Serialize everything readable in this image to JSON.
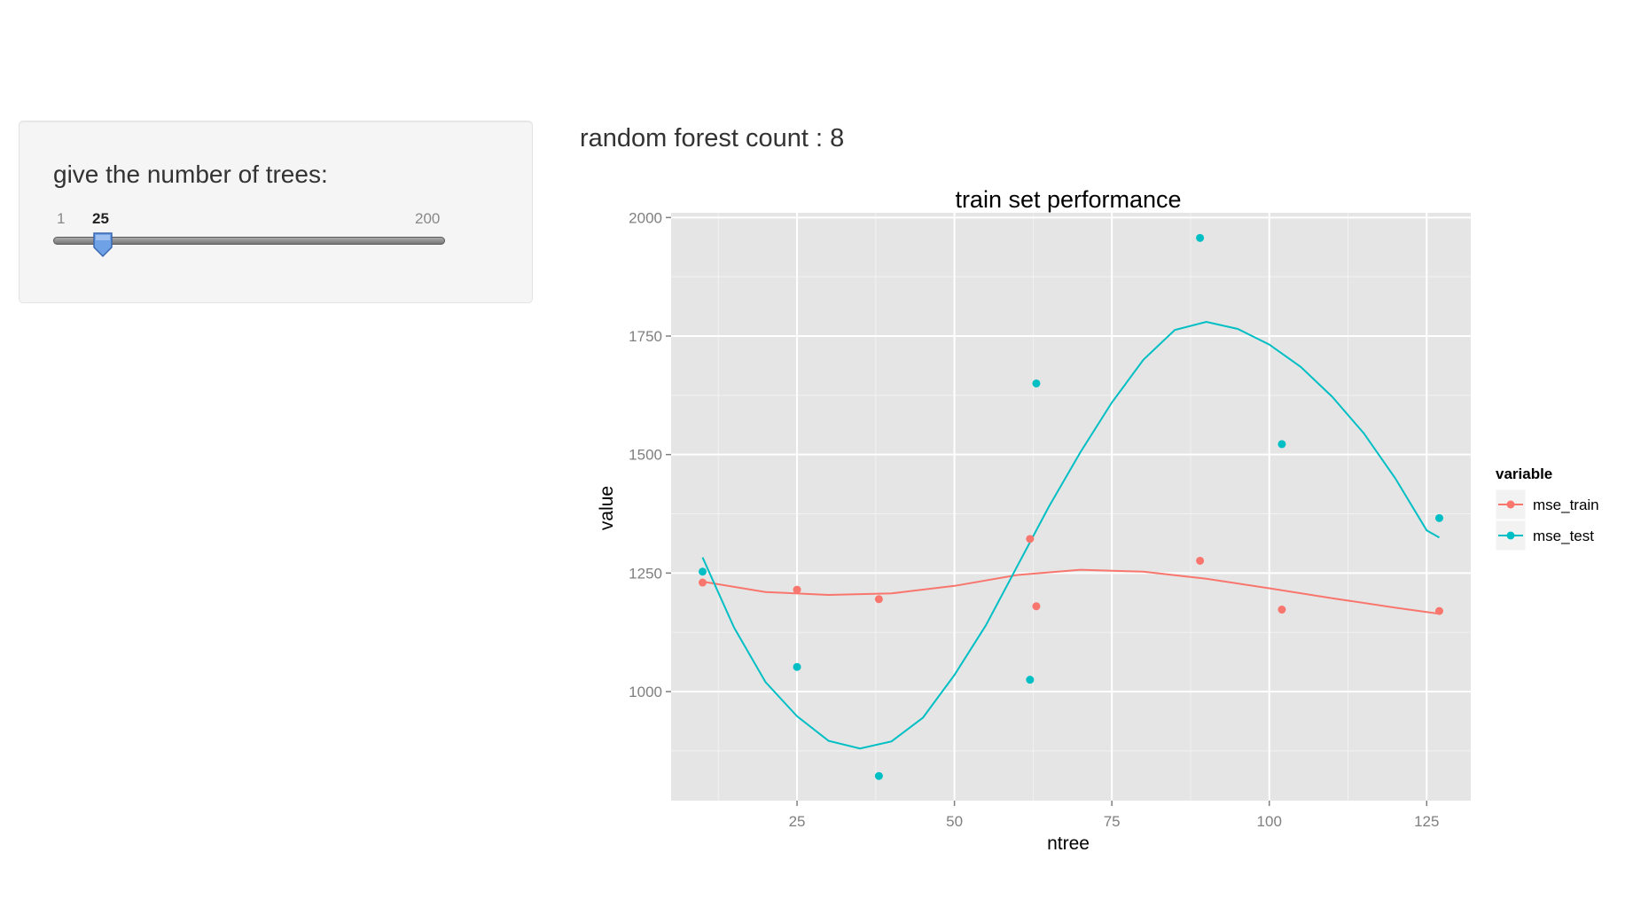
{
  "sidebar": {
    "label": "give the number of trees:",
    "slider": {
      "min": 1,
      "max": 200,
      "value": 25,
      "min_label": "1",
      "max_label": "200",
      "value_label": "25"
    }
  },
  "main": {
    "count_text": "random forest count : 8"
  },
  "chart_data": {
    "type": "scatter",
    "title": "train set performance",
    "xlabel": "ntree",
    "ylabel": "value",
    "xlim": [
      5,
      132
    ],
    "ylim": [
      770,
      2010
    ],
    "xticks": [
      25,
      50,
      75,
      100,
      125
    ],
    "yticks": [
      1000,
      1250,
      1500,
      1750,
      2000
    ],
    "grid": true,
    "legend": {
      "title": "variable",
      "position": "right"
    },
    "series": [
      {
        "name": "mse_train",
        "color": "#F8766D",
        "points": [
          [
            10,
            1230
          ],
          [
            25,
            1215
          ],
          [
            38,
            1195
          ],
          [
            62,
            1322
          ],
          [
            63,
            1180
          ],
          [
            89,
            1276
          ],
          [
            102,
            1173
          ],
          [
            127,
            1170
          ]
        ],
        "smooth": [
          [
            10,
            1232
          ],
          [
            20,
            1210
          ],
          [
            30,
            1204
          ],
          [
            40,
            1207
          ],
          [
            50,
            1223
          ],
          [
            60,
            1246
          ],
          [
            70,
            1257
          ],
          [
            80,
            1253
          ],
          [
            90,
            1238
          ],
          [
            100,
            1218
          ],
          [
            110,
            1197
          ],
          [
            120,
            1177
          ],
          [
            127,
            1164
          ]
        ]
      },
      {
        "name": "mse_test",
        "color": "#00BFC4",
        "points": [
          [
            10,
            1253
          ],
          [
            25,
            1052
          ],
          [
            38,
            822
          ],
          [
            62,
            1025
          ],
          [
            63,
            1650
          ],
          [
            89,
            1957
          ],
          [
            102,
            1522
          ],
          [
            127,
            1366
          ]
        ],
        "smooth": [
          [
            10,
            1283
          ],
          [
            15,
            1135
          ],
          [
            20,
            1020
          ],
          [
            25,
            948
          ],
          [
            30,
            896
          ],
          [
            35,
            880
          ],
          [
            40,
            895
          ],
          [
            45,
            945
          ],
          [
            50,
            1035
          ],
          [
            55,
            1140
          ],
          [
            60,
            1265
          ],
          [
            65,
            1390
          ],
          [
            70,
            1505
          ],
          [
            75,
            1610
          ],
          [
            80,
            1700
          ],
          [
            85,
            1763
          ],
          [
            90,
            1780
          ],
          [
            95,
            1765
          ],
          [
            100,
            1732
          ],
          [
            105,
            1685
          ],
          [
            110,
            1622
          ],
          [
            115,
            1545
          ],
          [
            120,
            1450
          ],
          [
            125,
            1340
          ],
          [
            127,
            1325
          ]
        ]
      }
    ]
  }
}
